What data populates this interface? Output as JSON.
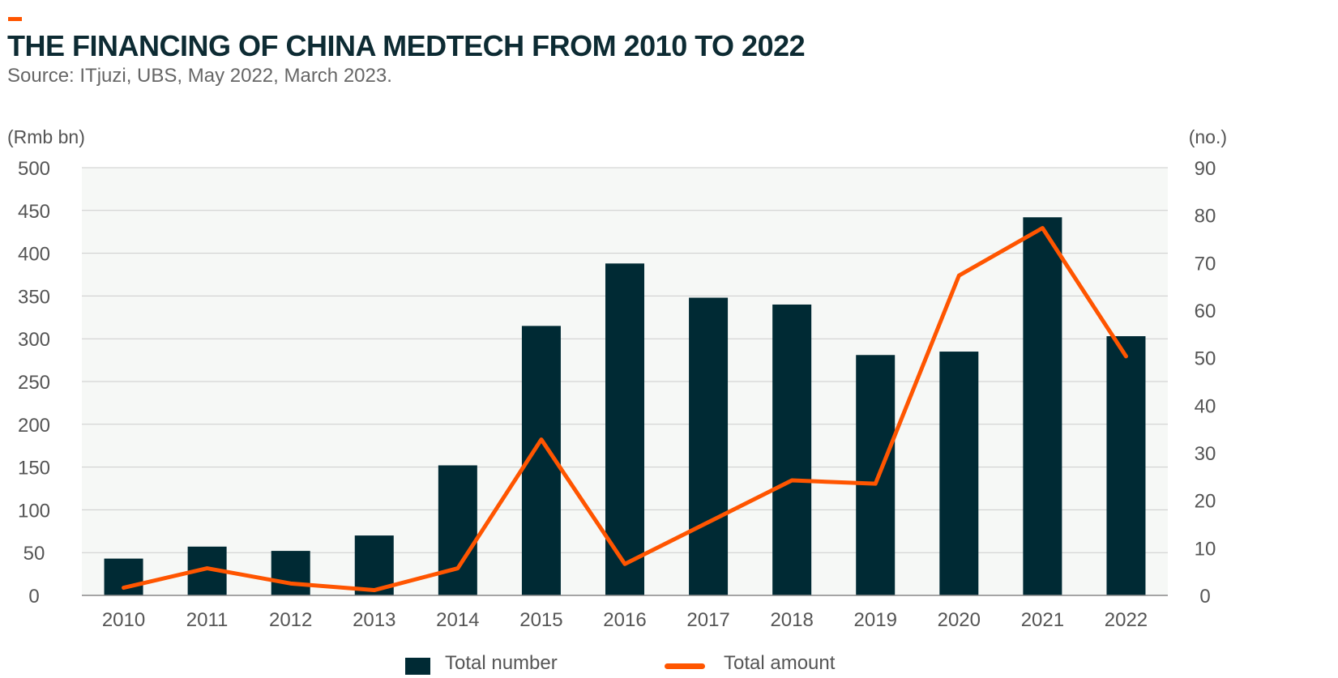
{
  "header": {
    "title": "THE FINANCING OF CHINA MEDTECH FROM 2010 TO 2022",
    "subtitle": "Source: ITjuzi, UBS, May 2022, March 2023."
  },
  "colors": {
    "bar": "#002a34",
    "line": "#ff5500",
    "accent": "#ff5500",
    "plot_bg": "#f6f8f6",
    "grid": "#cccccc",
    "axis_text": "#555555",
    "title": "#0d2b33"
  },
  "chart_data": {
    "type": "bar",
    "title": "THE FINANCING OF CHINA MEDTECH FROM 2010 TO 2022",
    "subtitle": "Source: ITjuzi, UBS, May 2022, March 2023.",
    "categories": [
      "2010",
      "2011",
      "2012",
      "2013",
      "2014",
      "2015",
      "2016",
      "2017",
      "2018",
      "2019",
      "2020",
      "2021",
      "2022"
    ],
    "left_axis": {
      "label": "(Rmb bn)",
      "ylim": [
        0,
        500
      ],
      "ticks": [
        "0",
        "50",
        "100",
        "150",
        "200",
        "250",
        "300",
        "350",
        "400",
        "450",
        "500"
      ]
    },
    "right_axis": {
      "label": "(no.)",
      "ylim": [
        0,
        90
      ],
      "ticks": [
        "0",
        "10",
        "20",
        "30",
        "40",
        "50",
        "60",
        "70",
        "80",
        "90"
      ]
    },
    "series": [
      {
        "name": "Total number",
        "type": "bar",
        "axis": "left",
        "values": [
          43,
          57,
          52,
          70,
          152,
          315,
          388,
          348,
          340,
          281,
          285,
          442,
          303
        ]
      },
      {
        "name": "Total amount",
        "type": "line",
        "axis": "right",
        "values": [
          1.6,
          5.7,
          2.5,
          1.1,
          5.7,
          32.8,
          6.6,
          15.4,
          24.2,
          23.5,
          67.3,
          77.3,
          50.3
        ]
      }
    ],
    "grid": true,
    "legend": "bottom-center"
  },
  "legend": {
    "items": [
      "Total number",
      "Total amount"
    ]
  }
}
